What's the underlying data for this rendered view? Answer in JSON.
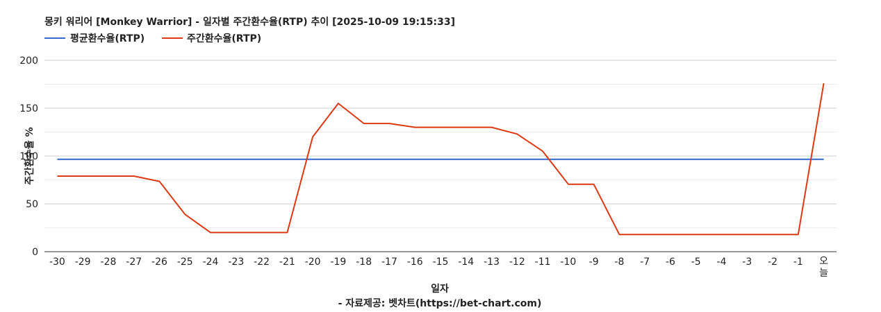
{
  "chart_data": {
    "type": "line",
    "title": "몽키 워리어 [Monkey Warrior] - 일자별 주간환수율(RTP) 추이 [2025-10-09 19:15:33]",
    "xlabel": "일자",
    "ylabel": "주간환수율 %",
    "credit": "- 자료제공: 벳차트(https://bet-chart.com)",
    "categories": [
      "-30",
      "-29",
      "-28",
      "-27",
      "-26",
      "-25",
      "-24",
      "-23",
      "-22",
      "-21",
      "-20",
      "-19",
      "-18",
      "-17",
      "-16",
      "-15",
      "-14",
      "-13",
      "-12",
      "-11",
      "-10",
      "-9",
      "-8",
      "-7",
      "-6",
      "-5",
      "-4",
      "-3",
      "-2",
      "-1",
      "오늘"
    ],
    "ylim": [
      0,
      200
    ],
    "yticks": [
      "0",
      "50",
      "100",
      "150",
      "200"
    ],
    "grid": true,
    "legend_position": "top-left",
    "series": [
      {
        "name": "평균환수율(RTP)",
        "color": "#3366cc",
        "values": [
          96.5,
          96.5,
          96.5,
          96.5,
          96.5,
          96.5,
          96.5,
          96.5,
          96.5,
          96.5,
          96.5,
          96.5,
          96.5,
          96.5,
          96.5,
          96.5,
          96.5,
          96.5,
          96.5,
          96.5,
          96.5,
          96.5,
          96.5,
          96.5,
          96.5,
          96.5,
          96.5,
          96.5,
          96.5,
          96.5,
          96.5
        ]
      },
      {
        "name": "주간환수율(RTP)",
        "color": "#dc3912",
        "values": [
          79,
          79,
          79,
          79,
          73.5,
          39,
          20,
          20,
          20,
          20,
          120,
          155,
          134,
          134,
          130,
          130,
          130,
          130,
          123,
          105,
          70.5,
          70.5,
          18,
          18,
          18,
          18,
          18,
          18,
          18,
          18,
          176
        ]
      }
    ]
  }
}
